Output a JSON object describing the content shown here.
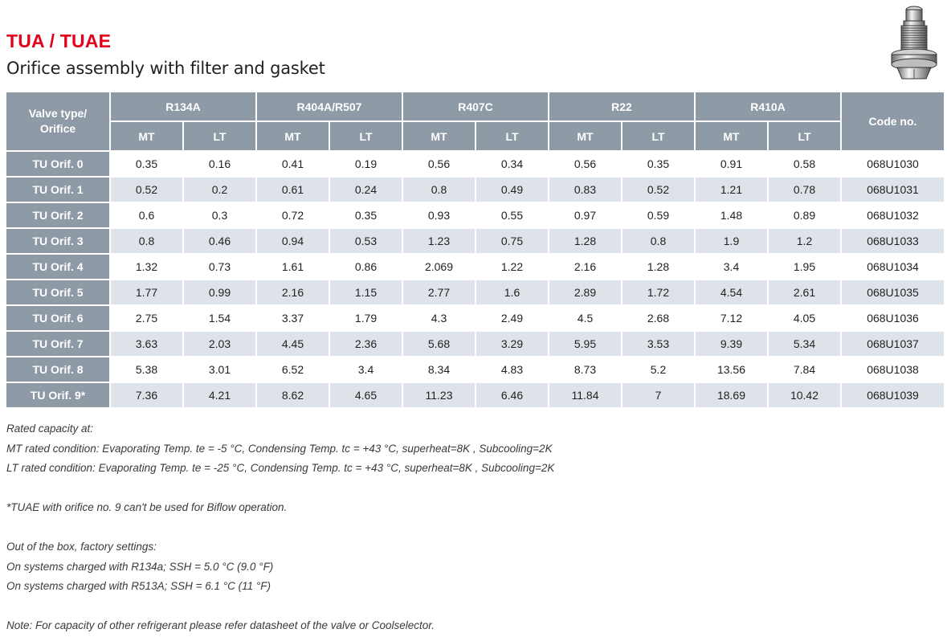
{
  "header": {
    "title": "TUA / TUAE",
    "subtitle": "Orifice assembly with filter and gasket"
  },
  "table": {
    "corner_label": "Valve type/\nOrifice",
    "code_label": "Code no.",
    "refrigerants": [
      "R134A",
      "R404A/R507",
      "R407C",
      "R22",
      "R410A"
    ],
    "sub_columns": [
      "MT",
      "LT"
    ],
    "rows": [
      {
        "label": "TU Orif. 0",
        "values": [
          "0.35",
          "0.16",
          "0.41",
          "0.19",
          "0.56",
          "0.34",
          "0.56",
          "0.35",
          "0.91",
          "0.58"
        ],
        "code": "068U1030"
      },
      {
        "label": "TU Orif. 1",
        "values": [
          "0.52",
          "0.2",
          "0.61",
          "0.24",
          "0.8",
          "0.49",
          "0.83",
          "0.52",
          "1.21",
          "0.78"
        ],
        "code": "068U1031"
      },
      {
        "label": "TU Orif. 2",
        "values": [
          "0.6",
          "0.3",
          "0.72",
          "0.35",
          "0.93",
          "0.55",
          "0.97",
          "0.59",
          "1.48",
          "0.89"
        ],
        "code": "068U1032"
      },
      {
        "label": "TU Orif. 3",
        "values": [
          "0.8",
          "0.46",
          "0.94",
          "0.53",
          "1.23",
          "0.75",
          "1.28",
          "0.8",
          "1.9",
          "1.2"
        ],
        "code": "068U1033"
      },
      {
        "label": "TU Orif. 4",
        "values": [
          "1.32",
          "0.73",
          "1.61",
          "0.86",
          "2.069",
          "1.22",
          "2.16",
          "1.28",
          "3.4",
          "1.95"
        ],
        "code": "068U1034"
      },
      {
        "label": "TU Orif. 5",
        "values": [
          "1.77",
          "0.99",
          "2.16",
          "1.15",
          "2.77",
          "1.6",
          "2.89",
          "1.72",
          "4.54",
          "2.61"
        ],
        "code": "068U1035"
      },
      {
        "label": "TU Orif. 6",
        "values": [
          "2.75",
          "1.54",
          "3.37",
          "1.79",
          "4.3",
          "2.49",
          "4.5",
          "2.68",
          "7.12",
          "4.05"
        ],
        "code": "068U1036"
      },
      {
        "label": "TU Orif. 7",
        "values": [
          "3.63",
          "2.03",
          "4.45",
          "2.36",
          "5.68",
          "3.29",
          "5.95",
          "3.53",
          "9.39",
          "5.34"
        ],
        "code": "068U1037"
      },
      {
        "label": "TU Orif. 8",
        "values": [
          "5.38",
          "3.01",
          "6.52",
          "3.4",
          "8.34",
          "4.83",
          "8.73",
          "5.2",
          "13.56",
          "7.84"
        ],
        "code": "068U1038"
      },
      {
        "label": "TU Orif. 9*",
        "values": [
          "7.36",
          "4.21",
          "8.62",
          "4.65",
          "11.23",
          "6.46",
          "11.84",
          "7",
          "18.69",
          "10.42"
        ],
        "code": "068U1039"
      }
    ]
  },
  "notes": {
    "rated_heading": "Rated capacity at:",
    "mt_condition": "MT rated condition: Evaporating Temp. te = -5 °C, Condensing Temp. tc = +43 °C, superheat=8K , Subcooling=2K",
    "lt_condition": "LT rated condition: Evaporating Temp. te = -25 °C, Condensing Temp. tc = +43 °C, superheat=8K , Subcooling=2K",
    "biflow_note": "*TUAE with orifice no. 9 can't be used for Biflow operation.",
    "factory_heading": "Out of the box, factory settings:",
    "r134a_setting": "On systems charged with R134a; SSH = 5.0 °C (9.0 °F)",
    "r513a_setting": "On systems charged with R513A; SSH = 6.1 °C (11 °F)",
    "refrigerant_note": "Note: For capacity of other refrigerant please refer datasheet of the valve or Coolselector."
  },
  "colors": {
    "title_red": "#e2001a",
    "header_gray": "#8e9ba6",
    "row_stripe": "#dde3e9"
  },
  "icons": {
    "product": "orifice-assembly-image"
  }
}
